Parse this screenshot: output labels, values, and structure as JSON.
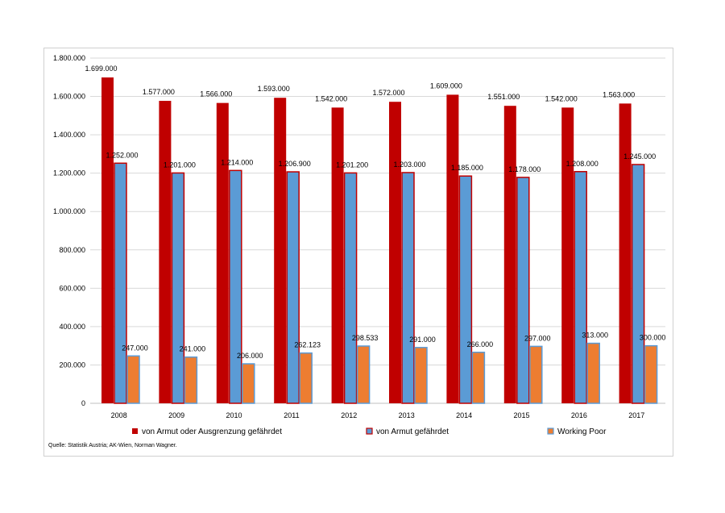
{
  "chart_data": {
    "type": "bar",
    "categories": [
      "2008",
      "2009",
      "2010",
      "2011",
      "2012",
      "2013",
      "2014",
      "2015",
      "2016",
      "2017"
    ],
    "series": [
      {
        "name": "von Armut oder Ausgrenzung gefährdet",
        "color": "#c00000",
        "values": [
          1699000,
          1577000,
          1566000,
          1593000,
          1542000,
          1572000,
          1609000,
          1551000,
          1542000,
          1563000
        ],
        "labels": [
          "1.699.000",
          "1.577.000",
          "1.566.000",
          "1.593.000",
          "1.542.000",
          "1.572.000",
          "1.609.000",
          "1.551.000",
          "1.542.000",
          "1.563.000"
        ]
      },
      {
        "name": "von Armut gefährdet",
        "color": "#5b9bd5",
        "border": "#c00000",
        "values": [
          1252000,
          1201000,
          1214000,
          1206900,
          1201200,
          1203000,
          1185000,
          1178000,
          1208000,
          1245000
        ],
        "labels": [
          "1.252.000",
          "1.201.000",
          "1.214.000",
          "1.206.900",
          "1.201.200",
          "1.203.000",
          "1.185.000",
          "1.178.000",
          "1.208.000",
          "1.245.000"
        ]
      },
      {
        "name": "Working Poor",
        "color": "#ed7d31",
        "border": "#5b9bd5",
        "values": [
          247000,
          241000,
          206000,
          262123,
          298533,
          291000,
          266000,
          297000,
          313000,
          300000
        ],
        "labels": [
          "247.000",
          "241.000",
          "206.000",
          "262.123",
          "298.533",
          "291.000",
          "266.000",
          "297.000",
          "313.000",
          "300.000"
        ]
      }
    ],
    "ylim": [
      0,
      1800000
    ],
    "yticks": [
      0,
      200000,
      400000,
      600000,
      800000,
      1000000,
      1200000,
      1400000,
      1600000,
      1800000
    ],
    "ytick_labels": [
      "0",
      "200.000",
      "400.000",
      "600.000",
      "800.000",
      "1.000.000",
      "1.200.000",
      "1.400.000",
      "1.600.000",
      "1.800.000"
    ],
    "grid": true,
    "legend_position": "bottom",
    "source": "Quelle: Statistik Austria; AK-Wien, Norman Wagner."
  }
}
